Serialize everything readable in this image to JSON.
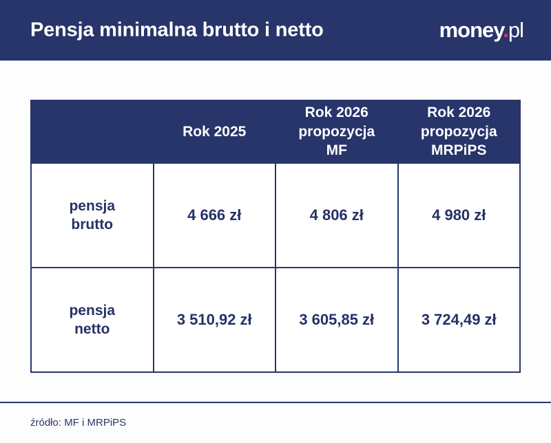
{
  "colors": {
    "navy": "#28356B",
    "cell_text_navy": "#263166",
    "logo_dot_pink": "#E0396F",
    "background": "#FDFDFD",
    "white": "#FFFFFF"
  },
  "header": {
    "title": "Pensja minimalna brutto i netto",
    "logo_money": "money",
    "logo_dot": ".",
    "logo_pl": "pl"
  },
  "chart_data": {
    "type": "table",
    "title": "Pensja minimalna brutto i netto",
    "columns": [
      "",
      "Rok 2025",
      "Rok 2026 propozycja MF",
      "Rok 2026 propozycja MRPiPS"
    ],
    "rows": [
      {
        "label": "pensja brutto",
        "values": [
          "4 666 zł",
          "4 806 zł",
          "4 980 zł"
        ]
      },
      {
        "label": "pensja netto",
        "values": [
          "3 510,92 zł",
          "3 605,85 zł",
          "3 724,49 zł"
        ]
      }
    ],
    "source": "źródło: MF i MRPiPS"
  },
  "table_display": {
    "col_headers": [
      "",
      "Rok 2025",
      "Rok 2026\npropozycja\nMF",
      "Rok 2026\npropozycja\nMRPiPS"
    ],
    "row_labels": [
      "pensja\nbrutto",
      "pensja\nnetto"
    ]
  },
  "footer": {
    "source": "źródło: MF i MRPiPS"
  }
}
